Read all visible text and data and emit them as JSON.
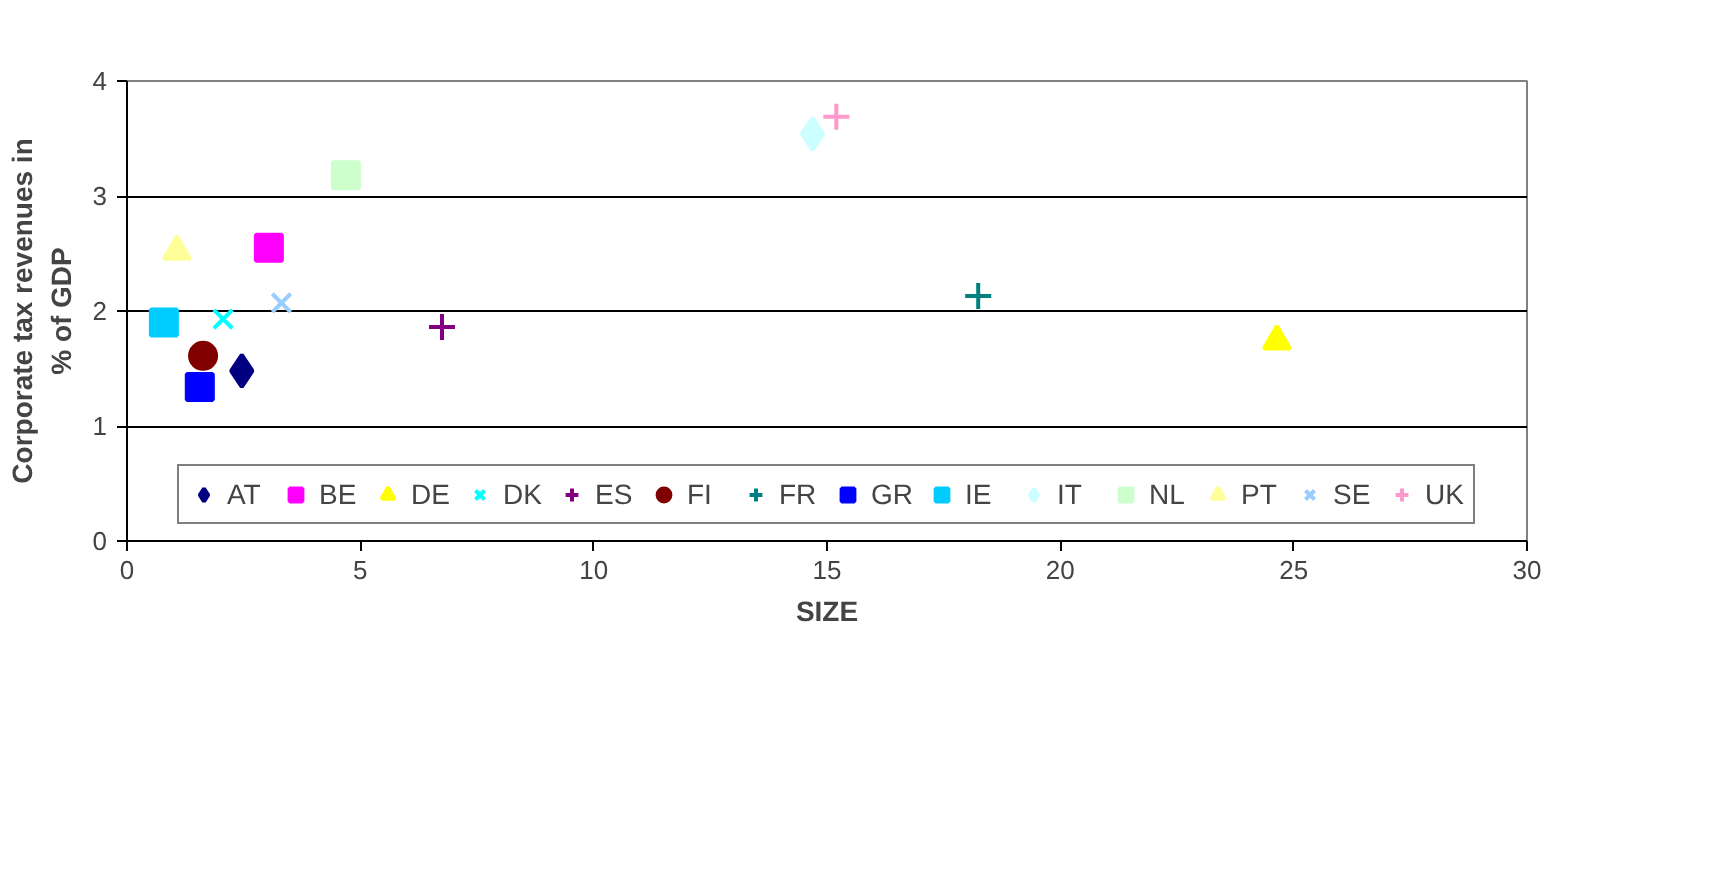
{
  "chart_data": {
    "type": "scatter",
    "xlabel": "SIZE",
    "ylabel": "Corporate tax revenues in\n% of GDP",
    "xlim": [
      0,
      30
    ],
    "xticks": [
      0,
      5,
      10,
      15,
      20,
      25,
      30
    ],
    "ylim": [
      0,
      4
    ],
    "yticks": [
      0,
      1,
      2,
      3,
      4
    ],
    "grid": "y",
    "legend": "bottom",
    "series": [
      {
        "name": "AT",
        "color": "#000080",
        "marker": "diamond",
        "x": [
          2.46
        ],
        "values": [
          1.48
        ]
      },
      {
        "name": "BE",
        "color": "#ff00ff",
        "marker": "square",
        "x": [
          3.04
        ],
        "values": [
          2.55
        ]
      },
      {
        "name": "DE",
        "color": "#ffff00",
        "marker": "triangle",
        "x": [
          24.64
        ],
        "values": [
          1.74
        ]
      },
      {
        "name": "DK",
        "color": "#00ffff",
        "marker": "x",
        "x": [
          2.06
        ],
        "values": [
          1.93
        ]
      },
      {
        "name": "ES",
        "color": "#800080",
        "marker": "cross",
        "x": [
          6.75
        ],
        "values": [
          1.86
        ]
      },
      {
        "name": "FI",
        "color": "#800000",
        "marker": "circle",
        "x": [
          1.63
        ],
        "values": [
          1.61
        ]
      },
      {
        "name": "FR",
        "color": "#008080",
        "marker": "cross",
        "x": [
          18.24
        ],
        "values": [
          2.13
        ]
      },
      {
        "name": "GR",
        "color": "#0000ff",
        "marker": "square",
        "x": [
          1.56
        ],
        "values": [
          1.34
        ]
      },
      {
        "name": "IE",
        "color": "#00ccff",
        "marker": "square",
        "x": [
          0.79
        ],
        "values": [
          1.9
        ]
      },
      {
        "name": "IT",
        "color": "#ccffff",
        "marker": "diamond",
        "x": [
          14.69
        ],
        "values": [
          3.54
        ]
      },
      {
        "name": "NL",
        "color": "#ccffcc",
        "marker": "square",
        "x": [
          4.69
        ],
        "values": [
          3.18
        ]
      },
      {
        "name": "PT",
        "color": "#ffff99",
        "marker": "triangle",
        "x": [
          1.07
        ],
        "values": [
          2.52
        ]
      },
      {
        "name": "SE",
        "color": "#99ccff",
        "marker": "x",
        "x": [
          3.31
        ],
        "values": [
          2.07
        ]
      },
      {
        "name": "UK",
        "color": "#ff99cc",
        "marker": "cross",
        "x": [
          15.2
        ],
        "values": [
          3.69
        ]
      }
    ]
  }
}
